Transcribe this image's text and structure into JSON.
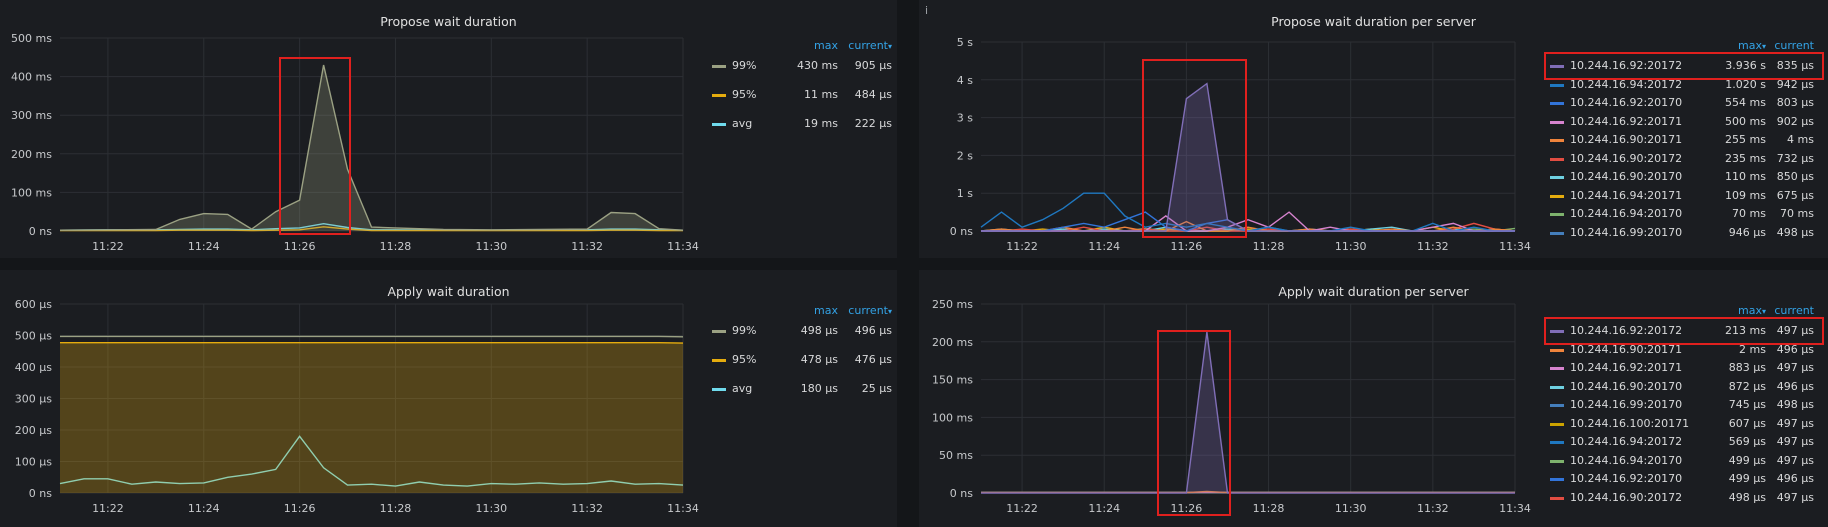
{
  "legend_header": {
    "max": "max",
    "current_sorted": "current",
    "max_sorted": "max",
    "current": "current",
    "sort_arrow": "▾"
  },
  "chart_data": [
    {
      "type": "line",
      "title": "Propose wait duration",
      "yunit": "ms",
      "yticks": [
        "0 ns",
        "100 ms",
        "200 ms",
        "300 ms",
        "400 ms",
        "500 ms"
      ],
      "ylim": [
        0,
        500
      ],
      "x_ticks": [
        "11:22",
        "11:24",
        "11:26",
        "11:28",
        "11:30",
        "11:32",
        "11:34"
      ],
      "xlim": [
        "11:21",
        "11:34"
      ],
      "grid": true,
      "legend_position": "right",
      "x": [
        "11:21",
        "11:22",
        "11:23",
        "11:23:30",
        "11:24",
        "11:24:30",
        "11:25",
        "11:25:30",
        "11:26",
        "11:26:30",
        "11:27",
        "11:27:30",
        "11:28",
        "11:29",
        "11:30",
        "11:31",
        "11:32",
        "11:32:30",
        "11:33",
        "11:33:30",
        "11:34"
      ],
      "series": [
        {
          "name": "99%",
          "color": "#9ba183",
          "fill": true,
          "max": "430 ms",
          "current": "905 µs",
          "values": [
            2,
            3,
            4,
            30,
            45,
            43,
            5,
            50,
            80,
            430,
            160,
            10,
            8,
            4,
            3,
            4,
            5,
            48,
            45,
            6,
            2
          ]
        },
        {
          "name": "95%",
          "color": "#e5ac0e",
          "max": "11 ms",
          "current": "484 µs",
          "values": [
            1,
            1,
            1,
            2,
            2,
            2,
            1,
            2,
            3,
            11,
            5,
            1,
            1,
            1,
            1,
            1,
            1,
            2,
            2,
            1,
            1
          ]
        },
        {
          "name": "avg",
          "color": "#70dbed",
          "max": "19 ms",
          "current": "222 µs",
          "values": [
            2,
            3,
            3,
            4,
            5,
            5,
            3,
            6,
            8,
            19,
            9,
            3,
            3,
            2,
            2,
            2,
            3,
            5,
            5,
            3,
            2
          ]
        }
      ]
    },
    {
      "type": "line",
      "title": "Propose wait duration per server",
      "yunit": "s",
      "yticks": [
        "0 ns",
        "1 s",
        "2 s",
        "3 s",
        "4 s",
        "5 s"
      ],
      "ylim": [
        0,
        5
      ],
      "x_ticks": [
        "11:22",
        "11:24",
        "11:26",
        "11:28",
        "11:30",
        "11:32",
        "11:34"
      ],
      "xlim": [
        "11:21",
        "11:34"
      ],
      "grid": true,
      "legend_position": "right",
      "x": [
        "11:21",
        "11:21:30",
        "11:22",
        "11:22:30",
        "11:23",
        "11:23:30",
        "11:24",
        "11:24:30",
        "11:25",
        "11:25:30",
        "11:26",
        "11:26:30",
        "11:27",
        "11:27:30",
        "11:28",
        "11:28:30",
        "11:29",
        "11:29:30",
        "11:30",
        "11:30:30",
        "11:31",
        "11:31:30",
        "11:32",
        "11:32:30",
        "11:33",
        "11:33:30",
        "11:34"
      ],
      "series": [
        {
          "name": "10.244.16.92:20172",
          "color": "#806eb7",
          "fill": true,
          "max": "3.936 s",
          "current": "835 µs",
          "values": [
            0,
            0,
            0,
            0,
            0,
            0,
            0,
            0,
            0,
            0,
            3.5,
            3.9,
            0.3,
            0,
            0,
            0,
            0,
            0,
            0,
            0,
            0,
            0,
            0,
            0,
            0,
            0,
            0
          ]
        },
        {
          "name": "10.244.16.94:20172",
          "color": "#1f78c1",
          "max": "1.020 s",
          "current": "942 µs",
          "values": [
            0.1,
            0.5,
            0.1,
            0.3,
            0.6,
            1.0,
            1.0,
            0.4,
            0.1,
            0.2,
            0.1,
            0.2,
            0.1,
            0.0,
            0.1,
            0.0,
            0.0,
            0.0,
            0.1,
            0.0,
            0.0,
            0.0,
            0.2,
            0.0,
            0.1,
            0.0,
            0.0
          ]
        },
        {
          "name": "10.244.16.92:20170",
          "color": "#3274d9",
          "max": "554 ms",
          "current": "803 µs",
          "values": [
            0,
            0,
            0,
            0,
            0.1,
            0.2,
            0.1,
            0.3,
            0.5,
            0.1,
            0.0,
            0.2,
            0.3,
            0.0,
            0.1,
            0.0,
            0.0,
            0.0,
            0.0,
            0.0,
            0.0,
            0.0,
            0.0,
            0.0,
            0.0,
            0.0,
            0.0
          ]
        },
        {
          "name": "10.244.16.92:20171",
          "color": "#d683ce",
          "max": "500 ms",
          "current": "902 µs",
          "values": [
            0,
            0,
            0,
            0,
            0,
            0,
            0,
            0,
            0,
            0.4,
            0.0,
            0.0,
            0.1,
            0.3,
            0.1,
            0.5,
            0.0,
            0.1,
            0.0,
            0.0,
            0.0,
            0.0,
            0.1,
            0.2,
            0.0,
            0.0,
            0.0
          ]
        },
        {
          "name": "10.244.16.90:20171",
          "color": "#ef843c",
          "max": "255 ms",
          "current": "4 ms",
          "values": [
            0,
            0.05,
            0,
            0,
            0.1,
            0,
            0,
            0.1,
            0,
            0,
            0.25,
            0,
            0,
            0.1,
            0,
            0,
            0.05,
            0,
            0,
            0,
            0.05,
            0,
            0,
            0.1,
            0,
            0.05,
            0
          ]
        },
        {
          "name": "10.244.16.90:20172",
          "color": "#e24d42",
          "max": "235 ms",
          "current": "732 µs",
          "values": [
            0,
            0,
            0.05,
            0,
            0,
            0.1,
            0,
            0,
            0.05,
            0,
            0,
            0.1,
            0,
            0,
            0.05,
            0,
            0,
            0,
            0.05,
            0,
            0,
            0,
            0,
            0.05,
            0.2,
            0.05,
            0
          ]
        },
        {
          "name": "10.244.16.90:20170",
          "color": "#6ed0e0",
          "max": "110 ms",
          "current": "850 µs",
          "values": [
            0,
            0.05,
            0,
            0,
            0.05,
            0,
            0.05,
            0,
            0,
            0.1,
            0,
            0,
            0.05,
            0,
            0,
            0,
            0.05,
            0,
            0,
            0.05,
            0.1,
            0,
            0,
            0.05,
            0,
            0,
            0
          ]
        },
        {
          "name": "10.244.16.94:20171",
          "color": "#e5ac0e",
          "max": "109 ms",
          "current": "675 µs",
          "values": [
            0,
            0,
            0,
            0.05,
            0,
            0,
            0.1,
            0,
            0,
            0.05,
            0,
            0,
            0,
            0.05,
            0,
            0,
            0,
            0,
            0,
            0.05,
            0,
            0,
            0.1,
            0,
            0,
            0.05,
            0
          ]
        },
        {
          "name": "10.244.16.94:20170",
          "color": "#7eb26d",
          "max": "70 ms",
          "current": "70 ms",
          "values": [
            0,
            0,
            0,
            0,
            0.05,
            0,
            0,
            0,
            0.07,
            0,
            0,
            0,
            0,
            0.05,
            0,
            0,
            0,
            0,
            0.05,
            0,
            0,
            0,
            0,
            0,
            0.05,
            0,
            0.07
          ]
        },
        {
          "name": "10.244.16.99:20170",
          "color": "#447ebc",
          "max": "946 µs",
          "current": "498 µs",
          "values": [
            0,
            0,
            0,
            0,
            0,
            0,
            0,
            0,
            0,
            0,
            0,
            0,
            0,
            0,
            0,
            0,
            0,
            0,
            0,
            0,
            0,
            0,
            0,
            0,
            0,
            0,
            0
          ]
        }
      ]
    },
    {
      "type": "line",
      "title": "Apply wait duration",
      "yunit": "µs",
      "yticks": [
        "0 ns",
        "100 µs",
        "200 µs",
        "300 µs",
        "400 µs",
        "500 µs",
        "600 µs"
      ],
      "ylim": [
        0,
        600
      ],
      "x_ticks": [
        "11:22",
        "11:24",
        "11:26",
        "11:28",
        "11:30",
        "11:32",
        "11:34"
      ],
      "xlim": [
        "11:21",
        "11:34"
      ],
      "grid": true,
      "legend_position": "right",
      "x": [
        "11:21",
        "11:21:30",
        "11:22",
        "11:22:30",
        "11:23",
        "11:23:30",
        "11:24",
        "11:24:30",
        "11:25",
        "11:25:30",
        "11:26",
        "11:26:30",
        "11:27",
        "11:27:30",
        "11:28",
        "11:28:30",
        "11:29",
        "11:29:30",
        "11:30",
        "11:30:30",
        "11:31",
        "11:31:30",
        "11:32",
        "11:32:30",
        "11:33",
        "11:33:30",
        "11:34"
      ],
      "series": [
        {
          "name": "99%",
          "color": "#9ba183",
          "max": "498 µs",
          "current": "496 µs",
          "values": [
            497,
            497,
            497,
            497,
            497,
            497,
            497,
            497,
            497,
            497,
            497,
            497,
            497,
            497,
            497,
            497,
            497,
            497,
            497,
            497,
            497,
            497,
            497,
            497,
            497,
            497,
            496
          ]
        },
        {
          "name": "95%",
          "color": "#e5ac0e",
          "fill": true,
          "max": "478 µs",
          "current": "476 µs",
          "values": [
            477,
            477,
            477,
            477,
            477,
            477,
            477,
            477,
            477,
            477,
            477,
            477,
            477,
            477,
            477,
            477,
            477,
            477,
            477,
            477,
            477,
            477,
            477,
            477,
            477,
            477,
            476
          ]
        },
        {
          "name": "avg",
          "color": "#70dbed",
          "max": "180 µs",
          "current": "25 µs",
          "values": [
            30,
            45,
            45,
            28,
            35,
            30,
            32,
            50,
            60,
            75,
            180,
            80,
            25,
            28,
            22,
            35,
            25,
            22,
            30,
            28,
            32,
            28,
            30,
            38,
            28,
            30,
            25
          ]
        }
      ]
    },
    {
      "type": "line",
      "title": "Apply wait duration per server",
      "yunit": "ms",
      "yticks": [
        "0 ns",
        "50 ms",
        "100 ms",
        "150 ms",
        "200 ms",
        "250 ms"
      ],
      "ylim": [
        0,
        250
      ],
      "x_ticks": [
        "11:22",
        "11:24",
        "11:26",
        "11:28",
        "11:30",
        "11:32",
        "11:34"
      ],
      "xlim": [
        "11:21",
        "11:34"
      ],
      "grid": true,
      "legend_position": "right",
      "x": [
        "11:21",
        "11:22",
        "11:23",
        "11:24",
        "11:25",
        "11:25:30",
        "11:26",
        "11:26:30",
        "11:27",
        "11:28",
        "11:29",
        "11:30",
        "11:31",
        "11:32",
        "11:33",
        "11:34"
      ],
      "series": [
        {
          "name": "10.244.16.92:20172",
          "color": "#806eb7",
          "fill": true,
          "max": "213 ms",
          "current": "497 µs",
          "values": [
            0,
            0,
            0,
            0,
            0,
            0,
            0,
            213,
            0,
            0,
            0,
            0,
            0,
            0,
            0,
            0
          ]
        },
        {
          "name": "10.244.16.90:20171",
          "color": "#ef843c",
          "max": "2 ms",
          "current": "496 µs",
          "values": [
            0.5,
            0.5,
            0.5,
            0.5,
            0.5,
            0.5,
            0.5,
            2,
            0.5,
            0.5,
            0.5,
            0.5,
            0.5,
            0.5,
            0.5,
            0.5
          ]
        },
        {
          "name": "10.244.16.92:20171",
          "color": "#d683ce",
          "max": "883 µs",
          "current": "497 µs",
          "values": [
            0.5,
            0.5,
            0.5,
            0.5,
            0.5,
            0.5,
            0.5,
            0.9,
            0.5,
            0.5,
            0.5,
            0.5,
            0.5,
            0.5,
            0.5,
            0.5
          ]
        },
        {
          "name": "10.244.16.90:20170",
          "color": "#6ed0e0",
          "max": "872 µs",
          "current": "496 µs",
          "values": [
            0.5,
            0.5,
            0.5,
            0.5,
            0.5,
            0.5,
            0.5,
            0.9,
            0.5,
            0.5,
            0.5,
            0.5,
            0.5,
            0.5,
            0.5,
            0.5
          ]
        },
        {
          "name": "10.244.16.99:20170",
          "color": "#447ebc",
          "max": "745 µs",
          "current": "498 µs",
          "values": [
            0.5,
            0.5,
            0.5,
            0.5,
            0.5,
            0.5,
            0.5,
            0.7,
            0.5,
            0.5,
            0.5,
            0.5,
            0.5,
            0.5,
            0.5,
            0.5
          ]
        },
        {
          "name": "10.244.16.100:20171",
          "color": "#cca300",
          "max": "607 µs",
          "current": "497 µs",
          "values": [
            0.5,
            0.5,
            0.5,
            0.5,
            0.5,
            0.5,
            0.5,
            0.6,
            0.5,
            0.5,
            0.5,
            0.5,
            0.5,
            0.5,
            0.5,
            0.5
          ]
        },
        {
          "name": "10.244.16.94:20172",
          "color": "#1f78c1",
          "max": "569 µs",
          "current": "497 µs",
          "values": [
            0.5,
            0.5,
            0.5,
            0.5,
            0.5,
            0.5,
            0.5,
            0.6,
            0.5,
            0.5,
            0.5,
            0.5,
            0.5,
            0.5,
            0.5,
            0.5
          ]
        },
        {
          "name": "10.244.16.94:20170",
          "color": "#7eb26d",
          "max": "499 µs",
          "current": "497 µs",
          "values": [
            0.5,
            0.5,
            0.5,
            0.5,
            0.5,
            0.5,
            0.5,
            0.5,
            0.5,
            0.5,
            0.5,
            0.5,
            0.5,
            0.5,
            0.5,
            0.5
          ]
        },
        {
          "name": "10.244.16.92:20170",
          "color": "#3274d9",
          "max": "499 µs",
          "current": "496 µs",
          "values": [
            0.5,
            0.5,
            0.5,
            0.5,
            0.5,
            0.5,
            0.5,
            0.5,
            0.5,
            0.5,
            0.5,
            0.5,
            0.5,
            0.5,
            0.5,
            0.5
          ]
        },
        {
          "name": "10.244.16.90:20172",
          "color": "#e24d42",
          "max": "498 µs",
          "current": "497 µs",
          "values": [
            0.5,
            0.5,
            0.5,
            0.5,
            0.5,
            0.5,
            0.5,
            0.5,
            0.5,
            0.5,
            0.5,
            0.5,
            0.5,
            0.5,
            0.5,
            0.5
          ]
        }
      ]
    }
  ]
}
